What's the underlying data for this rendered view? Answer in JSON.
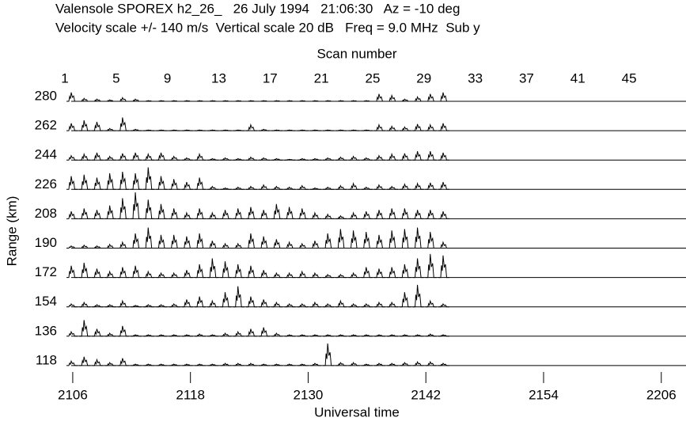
{
  "chart_data": {
    "type": "line",
    "title": "Valensole SPOREX h2_26_   26 July 1994   21:06:30   Az = -10 deg",
    "subtitle": "Velocity scale +/- 140 m/s  Vertical scale 20 dB   Freq = 9.0 MHz  Sub y",
    "x_label": "Scan number",
    "x2_label": "Universal time",
    "y_label": "Range (km)",
    "xlim": [
      1,
      49.5
    ],
    "xticks": [
      1,
      5,
      9,
      13,
      17,
      21,
      25,
      29,
      33,
      37,
      41,
      45
    ],
    "x2lim": [
      5.2,
      68.6
    ],
    "x2ticks": [
      {
        "value": 6,
        "label": "2106"
      },
      {
        "value": 18,
        "label": "2118"
      },
      {
        "value": 30,
        "label": "2130"
      },
      {
        "value": 42,
        "label": "2142"
      },
      {
        "value": 54,
        "label": "2154"
      },
      {
        "value": 66,
        "label": "2206"
      }
    ],
    "ylim": [
      0,
      40
    ],
    "x": [
      1,
      2,
      3,
      4,
      5,
      6,
      7,
      8,
      9,
      10,
      11,
      12,
      13,
      14,
      15,
      16,
      17,
      18,
      19,
      20,
      21,
      22,
      23,
      24,
      25,
      26,
      27,
      28,
      29,
      30
    ],
    "series": [
      {
        "name": "280",
        "color": "#000000",
        "values": [
          12,
          4,
          3,
          2,
          5,
          3,
          1,
          1,
          1,
          1,
          1,
          1,
          1,
          1,
          1,
          1,
          1,
          1,
          1,
          1,
          1,
          1,
          1,
          1,
          10,
          8,
          3,
          6,
          10,
          12
        ]
      },
      {
        "name": "262",
        "color": "#000000",
        "values": [
          10,
          14,
          12,
          3,
          18,
          2,
          1,
          1,
          1,
          1,
          1,
          1,
          1,
          1,
          8,
          2,
          1,
          1,
          1,
          1,
          1,
          1,
          1,
          1,
          8,
          6,
          5,
          9,
          8,
          10
        ]
      },
      {
        "name": "244",
        "color": "#000000",
        "values": [
          6,
          8,
          10,
          5,
          9,
          10,
          8,
          10,
          5,
          3,
          8,
          2,
          3,
          2,
          4,
          3,
          2,
          1,
          2,
          2,
          3,
          4,
          5,
          3,
          6,
          8,
          9,
          12,
          12,
          10
        ]
      },
      {
        "name": "226",
        "color": "#000000",
        "values": [
          18,
          20,
          16,
          22,
          24,
          22,
          30,
          18,
          14,
          10,
          16,
          4,
          2,
          3,
          4,
          6,
          4,
          3,
          5,
          2,
          3,
          5,
          8,
          3,
          6,
          4,
          7,
          8,
          9,
          10
        ]
      },
      {
        "name": "208",
        "color": "#000000",
        "values": [
          10,
          14,
          12,
          18,
          28,
          36,
          26,
          20,
          14,
          8,
          14,
          8,
          12,
          14,
          16,
          12,
          20,
          16,
          14,
          8,
          6,
          4,
          8,
          10,
          12,
          14,
          14,
          12,
          12,
          10
        ]
      },
      {
        "name": "190",
        "color": "#000000",
        "values": [
          3,
          4,
          3,
          5,
          8,
          20,
          28,
          18,
          18,
          16,
          20,
          10,
          6,
          6,
          20,
          16,
          12,
          8,
          6,
          10,
          20,
          26,
          24,
          22,
          18,
          24,
          26,
          28,
          22,
          8
        ]
      },
      {
        "name": "172",
        "color": "#000000",
        "values": [
          16,
          20,
          12,
          8,
          14,
          16,
          8,
          6,
          6,
          10,
          18,
          26,
          22,
          18,
          16,
          10,
          6,
          6,
          8,
          6,
          4,
          4,
          6,
          14,
          12,
          14,
          18,
          26,
          32,
          30
        ]
      },
      {
        "name": "154",
        "color": "#000000",
        "values": [
          4,
          6,
          3,
          3,
          8,
          2,
          3,
          3,
          4,
          10,
          14,
          8,
          20,
          28,
          14,
          10,
          6,
          4,
          4,
          6,
          4,
          8,
          4,
          4,
          6,
          6,
          20,
          30,
          8,
          4
        ]
      },
      {
        "name": "136",
        "color": "#000000",
        "values": [
          6,
          22,
          10,
          4,
          14,
          2,
          2,
          2,
          2,
          2,
          3,
          2,
          4,
          6,
          10,
          12,
          4,
          2,
          2,
          2,
          2,
          2,
          2,
          2,
          2,
          2,
          2,
          2,
          3,
          2
        ]
      },
      {
        "name": "118",
        "color": "#000000",
        "values": [
          6,
          12,
          8,
          4,
          10,
          2,
          2,
          2,
          2,
          2,
          2,
          2,
          3,
          3,
          3,
          2,
          2,
          2,
          2,
          3,
          30,
          4,
          4,
          2,
          3,
          3,
          4,
          5,
          5,
          3
        ]
      }
    ]
  }
}
